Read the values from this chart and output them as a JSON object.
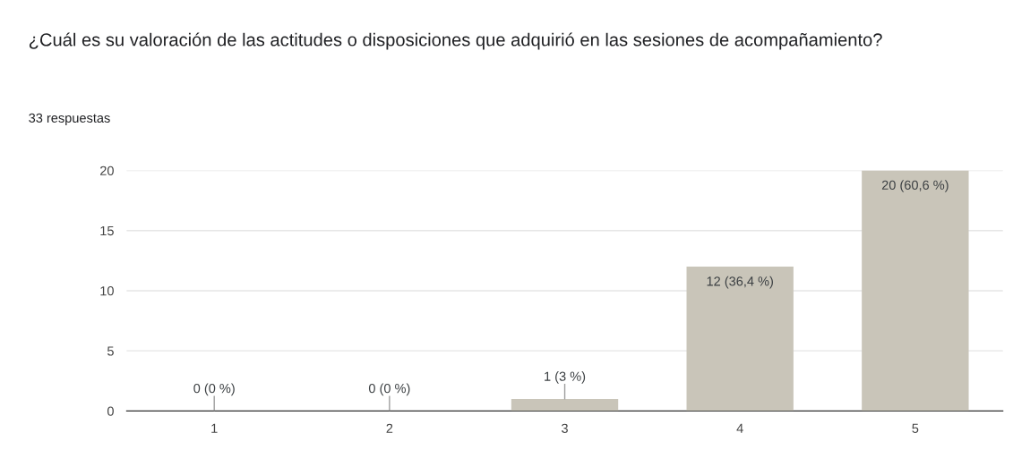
{
  "chart_data": {
    "type": "bar",
    "title": "¿Cuál es su valoración de las actitudes o disposiciones que adquirió en las sesiones de acompañamiento?",
    "subtitle": "33 respuestas",
    "categories": [
      "1",
      "2",
      "3",
      "4",
      "5"
    ],
    "values": [
      0,
      0,
      1,
      12,
      20
    ],
    "color": "#c9c5b9",
    "value_labels": [
      "0 (0 %)",
      "0 (0 %)",
      "1 (3 %)",
      "12 (36,4 %)",
      "20 (60,6 %)"
    ],
    "ylim": [
      0,
      20
    ],
    "yticks": [
      0,
      5,
      10,
      15,
      20
    ],
    "grid": "y",
    "legend": false
  }
}
